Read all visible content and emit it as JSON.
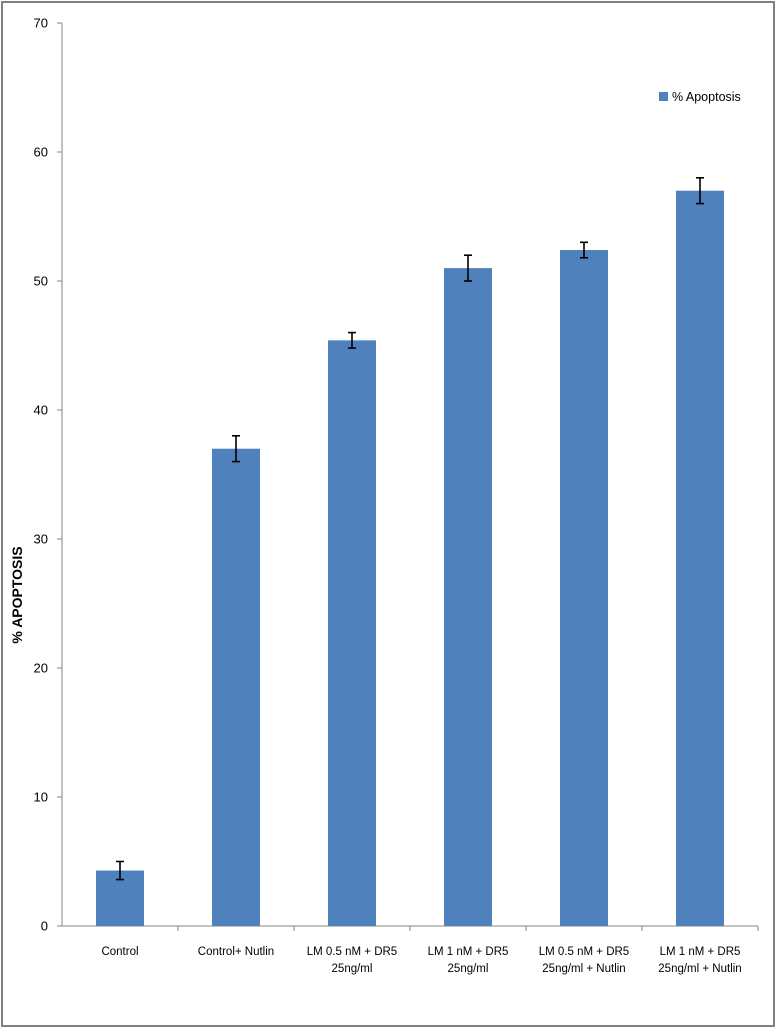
{
  "chart_data": {
    "type": "bar",
    "title": "",
    "xlabel": "",
    "ylabel": "% APOPTOSIS",
    "ylim": [
      0,
      70
    ],
    "yticks": [
      0,
      10,
      20,
      30,
      40,
      50,
      60,
      70
    ],
    "grid": false,
    "legend_position": "top-right",
    "categories": [
      [
        "Control"
      ],
      [
        "Control+ Nutlin"
      ],
      [
        "LM 0.5 nM + DR5",
        "25ng/ml"
      ],
      [
        "LM 1 nM + DR5",
        "25ng/ml"
      ],
      [
        "LM 0.5 nM + DR5",
        "25ng/ml + Nutlin"
      ],
      [
        "LM 1 nM + DR5",
        "25ng/ml + Nutlin"
      ]
    ],
    "series": [
      {
        "name": "% Apoptosis",
        "color": "#4f81bd",
        "values": [
          4.3,
          37,
          45.4,
          51,
          52.4,
          57
        ],
        "error": [
          0.7,
          1.0,
          0.6,
          1.0,
          0.6,
          1.0
        ]
      }
    ]
  }
}
